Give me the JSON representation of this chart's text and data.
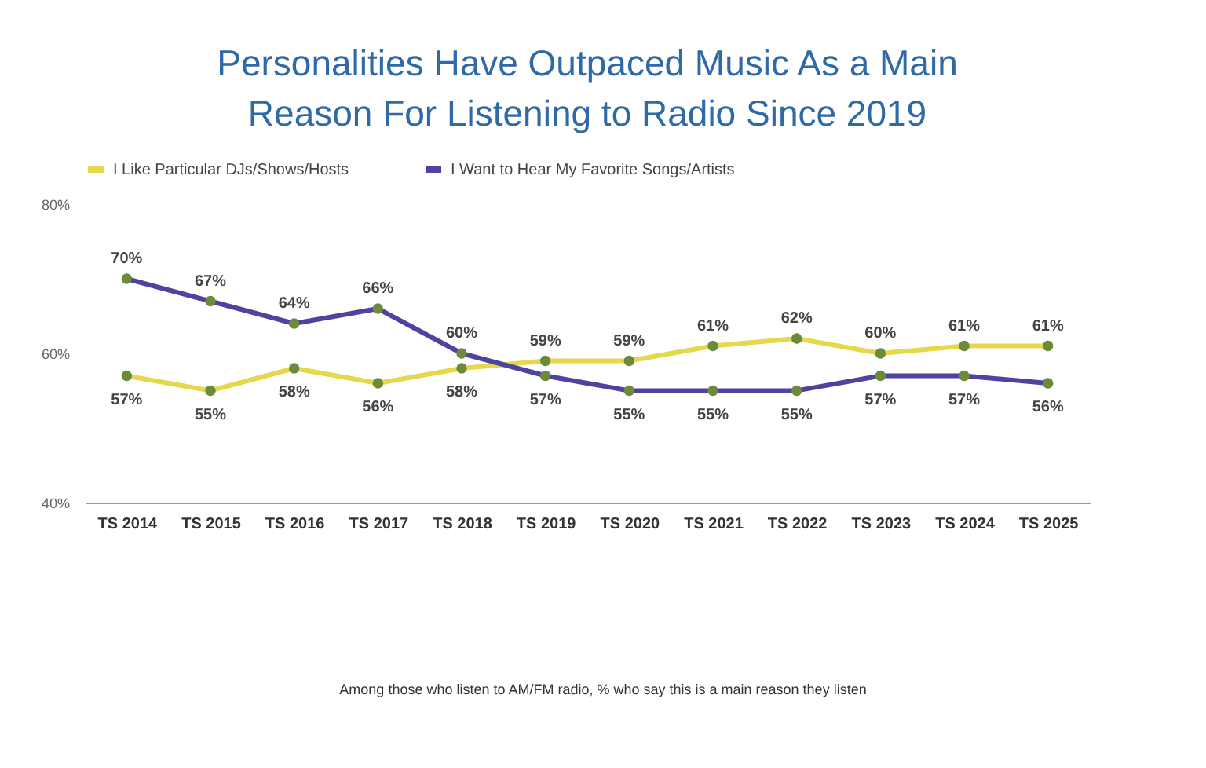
{
  "chart_data": {
    "type": "line",
    "title": "Personalities Have Outpaced Music As a Main\nReason For Listening to Radio Since 2019",
    "categories": [
      "TS 2014",
      "TS 2015",
      "TS 2016",
      "TS 2017",
      "TS 2018",
      "TS 2019",
      "TS 2020",
      "TS 2021",
      "TS 2022",
      "TS 2023",
      "TS 2024",
      "TS 2025"
    ],
    "ylim": [
      40,
      80
    ],
    "yticks": [
      {
        "value": 40,
        "label": "40%"
      },
      {
        "value": 60,
        "label": "60%"
      },
      {
        "value": 80,
        "label": "80%"
      }
    ],
    "series": [
      {
        "name": "I Like Particular DJs/Shows/Hosts",
        "color": "#e6d84c",
        "values": [
          57,
          55,
          58,
          56,
          58,
          59,
          59,
          61,
          62,
          60,
          61,
          61
        ],
        "value_labels": [
          "57%",
          "55%",
          "58%",
          "56%",
          "58%",
          "59%",
          "59%",
          "61%",
          "62%",
          "60%",
          "61%",
          "61%"
        ]
      },
      {
        "name": "I Want to Hear My Favorite Songs/Artists",
        "color": "#4f43a0",
        "values": [
          70,
          67,
          64,
          66,
          60,
          57,
          55,
          55,
          55,
          57,
          57,
          56
        ],
        "value_labels": [
          "70%",
          "67%",
          "64%",
          "66%",
          "60%",
          "57%",
          "55%",
          "55%",
          "55%",
          "57%",
          "57%",
          "56%"
        ]
      }
    ],
    "marker": "circle",
    "grid": false,
    "legend": "top",
    "annotations": [
      "Among those who listen to AM/FM radio, % who say this is a main reason they listen"
    ]
  }
}
